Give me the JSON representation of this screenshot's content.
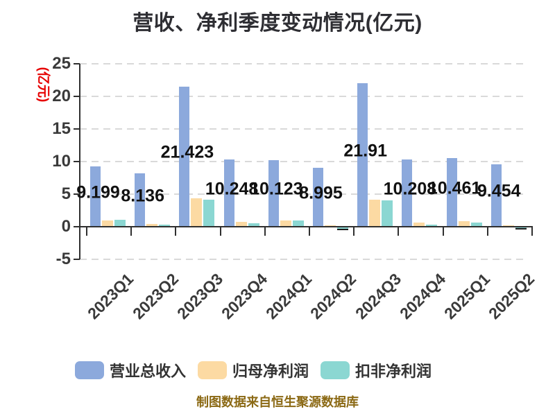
{
  "title": "营收、净利季度变动情况(亿元)",
  "y_axis": {
    "label": "(亿元)",
    "label_color": "#e60000",
    "tick_labels": [
      "25",
      "20",
      "15",
      "10",
      "5",
      "0",
      "-5"
    ],
    "tick_values": [
      25,
      20,
      15,
      10,
      5,
      0,
      -5
    ]
  },
  "legend": [
    {
      "label": "营业总收入",
      "color": "#8CA9DC"
    },
    {
      "label": "归母净利润",
      "color": "#FCDAA3"
    },
    {
      "label": "扣非净利润",
      "color": "#8BD7D2"
    }
  ],
  "footer": "制图数据来自恒生聚源数据库",
  "chart_data": {
    "type": "bar",
    "title": "营收、净利季度变动情况(亿元)",
    "ylabel": "(亿元)",
    "ylim": [
      -5,
      25
    ],
    "grid": "dashed-horizontal",
    "legend_position": "bottom",
    "categories": [
      "2023Q1",
      "2023Q2",
      "2023Q3",
      "2023Q4",
      "2024Q1",
      "2024Q2",
      "2024Q3",
      "2024Q4",
      "2025Q1",
      "2025Q2"
    ],
    "series": [
      {
        "name": "营业总收入",
        "color": "#8CA9DC",
        "values": [
          9.199,
          8.136,
          21.423,
          10.248,
          10.123,
          8.995,
          21.91,
          10.208,
          10.461,
          9.454
        ],
        "value_labels": [
          "9.199",
          "8.136",
          "21.423",
          "10.248",
          "10.123",
          "8.995",
          "21.91",
          "10.208",
          "10.461",
          "9.454"
        ]
      },
      {
        "name": "归母净利润",
        "color": "#FCDAA3",
        "values": [
          0.9,
          0.3,
          4.3,
          0.67,
          0.85,
          0.15,
          4.05,
          0.53,
          0.75,
          0.15
        ]
      },
      {
        "name": "扣非净利润",
        "color": "#8BD7D2",
        "values": [
          0.93,
          0.2,
          4.1,
          0.4,
          0.8,
          -0.25,
          3.95,
          0.21,
          0.55,
          -0.1
        ]
      }
    ]
  }
}
